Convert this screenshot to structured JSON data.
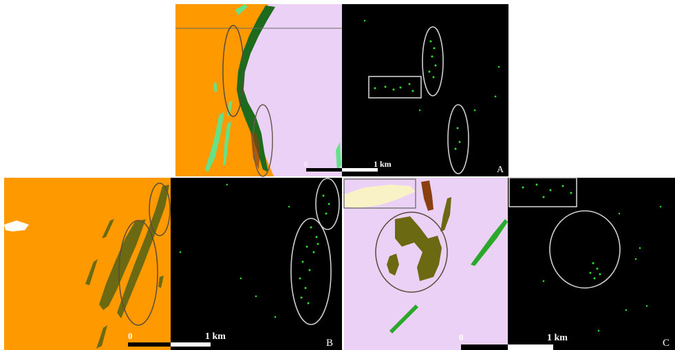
{
  "figure": {
    "panels": [
      {
        "label": "A",
        "scale": {
          "zero": "0",
          "distance": "1 km"
        }
      },
      {
        "label": "B",
        "scale": {
          "zero": "0",
          "distance": "1 km"
        }
      },
      {
        "label": "C",
        "scale": {
          "zero": "0",
          "distance": "1 km"
        }
      }
    ]
  },
  "colors": {
    "geology_orange": "#ff9900",
    "geology_lilac": "#ecd1f7",
    "unit_dark_green": "#1e6b1e",
    "unit_olive": "#6b6a12",
    "unit_light_green": "#67e08a",
    "unit_bright_green": "#2aa82a",
    "unit_brown": "#8a3f12",
    "unit_cream": "#f8f2c6",
    "detection_green": "#2ee02e",
    "background_black": "#000000"
  }
}
